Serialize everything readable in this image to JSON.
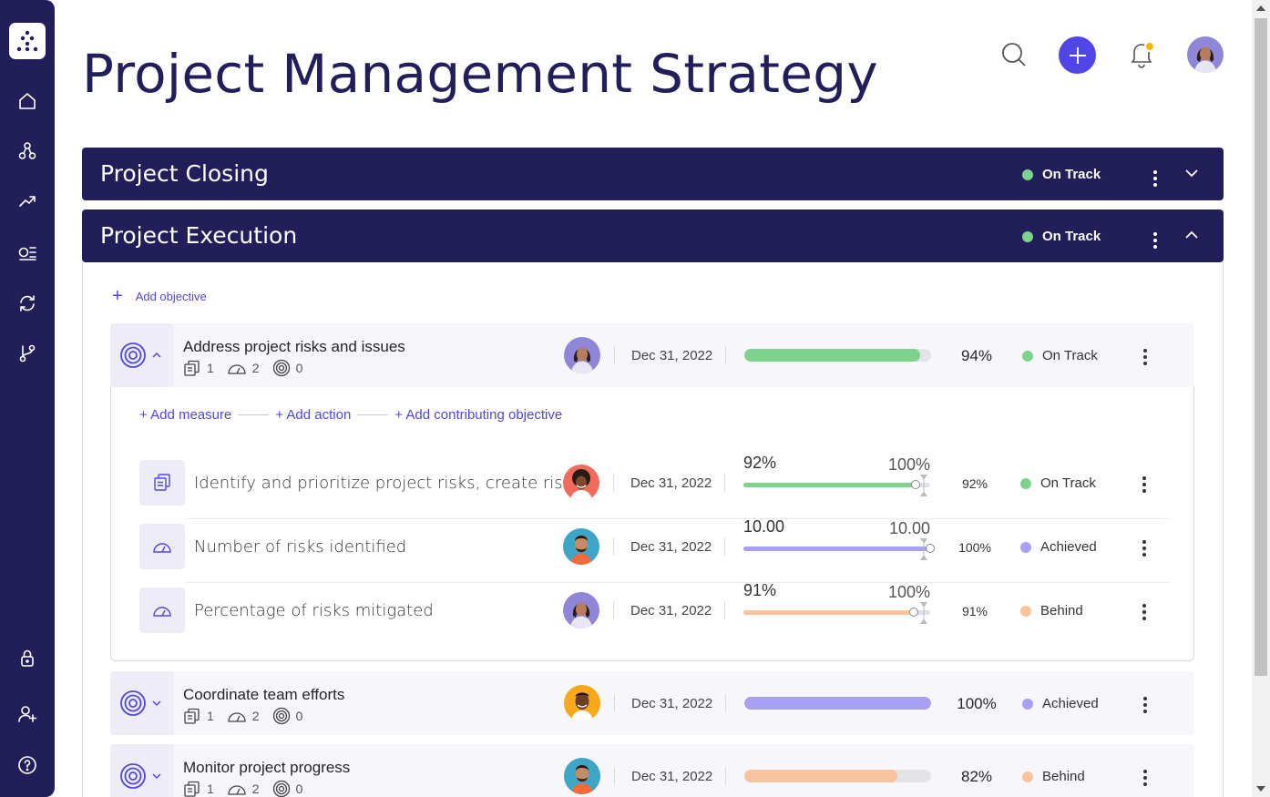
{
  "page": {
    "title": "Project Management Strategy"
  },
  "colors": {
    "navy": "#211e5a",
    "accent": "#5046e5",
    "on_track": "#7dd38c",
    "achieved": "#a8a0f5",
    "behind": "#f9c49c",
    "notification": "#f5b70a"
  },
  "sidebar": {
    "icons": [
      "logo-icon",
      "home-icon",
      "hierarchy-icon",
      "trend-icon",
      "list-icon",
      "sync-icon",
      "branch-icon",
      "lock-icon",
      "add-user-icon",
      "help-icon"
    ]
  },
  "sections": [
    {
      "title": "Project Closing",
      "status": "On Track",
      "expanded": false
    },
    {
      "title": "Project Execution",
      "status": "On Track",
      "expanded": true
    }
  ],
  "add_objective_label": "Add objective",
  "objectives": [
    {
      "name": "Address project risks and issues",
      "measures": "1",
      "actions": "2",
      "contributing": "0",
      "date": "Dec 31, 2022",
      "progress": 0.94,
      "percent": "94%",
      "status": "On Track",
      "color": "#7dd38c",
      "expanded": true
    },
    {
      "name": "Coordinate team efforts",
      "measures": "1",
      "actions": "2",
      "contributing": "0",
      "date": "Dec 31, 2022",
      "progress": 1.0,
      "percent": "100%",
      "status": "Achieved",
      "color": "#a8a0f5",
      "expanded": false
    },
    {
      "name": "Monitor project progress",
      "measures": "1",
      "actions": "2",
      "contributing": "0",
      "date": "Dec 31, 2022",
      "progress": 0.82,
      "percent": "82%",
      "status": "Behind",
      "color": "#f9c49c",
      "expanded": false
    }
  ],
  "add_links": {
    "measure": "+ Add measure",
    "action": "+ Add action",
    "contributing": "+ Add contributing objective"
  },
  "children": [
    {
      "type": "measure",
      "name": "Identify and prioritize project risks, create risk...",
      "date": "Dec 31, 2022",
      "current": "92%",
      "target": "100%",
      "progress": 0.92,
      "percent": "92%",
      "status": "On Track",
      "color": "#7dd38c"
    },
    {
      "type": "action",
      "name": "Number of risks identified",
      "date": "Dec 31, 2022",
      "current": "10.00",
      "target": "10.00",
      "progress": 1.0,
      "percent": "100%",
      "status": "Achieved",
      "color": "#a8a0f5"
    },
    {
      "type": "action",
      "name": "Percentage of risks mitigated",
      "date": "Dec 31, 2022",
      "current": "91%",
      "target": "100%",
      "progress": 0.91,
      "percent": "91%",
      "status": "Behind",
      "color": "#f9c49c"
    }
  ]
}
